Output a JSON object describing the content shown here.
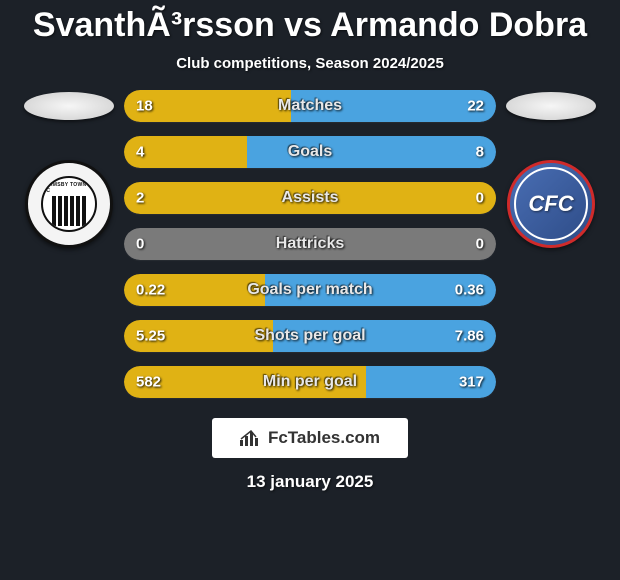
{
  "title": "SvanthÃ³rsson vs Armando Dobra",
  "subtitle": "Club competitions, Season 2024/2025",
  "date": "13 january 2025",
  "branding": "FcTables.com",
  "colors": {
    "background": "#1c2128",
    "barBg": "#2f353e",
    "leftFill": "#e0b214",
    "rightFill": "#4aa3e0",
    "tieFill": "#7a7a7a"
  },
  "clubs": {
    "left": {
      "name": "Grimsby Town FC",
      "badgeTextTop": "GRIMSBY TOWN FC"
    },
    "right": {
      "name": "Chesterfield FC",
      "badgeLetters": "CFC"
    }
  },
  "stats": [
    {
      "label": "Matches",
      "leftVal": "18",
      "rightVal": "22",
      "leftPct": 45,
      "rightPct": 55
    },
    {
      "label": "Goals",
      "leftVal": "4",
      "rightVal": "8",
      "leftPct": 33,
      "rightPct": 67
    },
    {
      "label": "Assists",
      "leftVal": "2",
      "rightVal": "0",
      "leftPct": 100,
      "rightPct": 0
    },
    {
      "label": "Hattricks",
      "leftVal": "0",
      "rightVal": "0",
      "leftPct": 50,
      "rightPct": 50,
      "tie": true
    },
    {
      "label": "Goals per match",
      "leftVal": "0.22",
      "rightVal": "0.36",
      "leftPct": 38,
      "rightPct": 62
    },
    {
      "label": "Shots per goal",
      "leftVal": "5.25",
      "rightVal": "7.86",
      "leftPct": 40,
      "rightPct": 60
    },
    {
      "label": "Min per goal",
      "leftVal": "582",
      "rightVal": "317",
      "leftPct": 65,
      "rightPct": 35
    }
  ]
}
